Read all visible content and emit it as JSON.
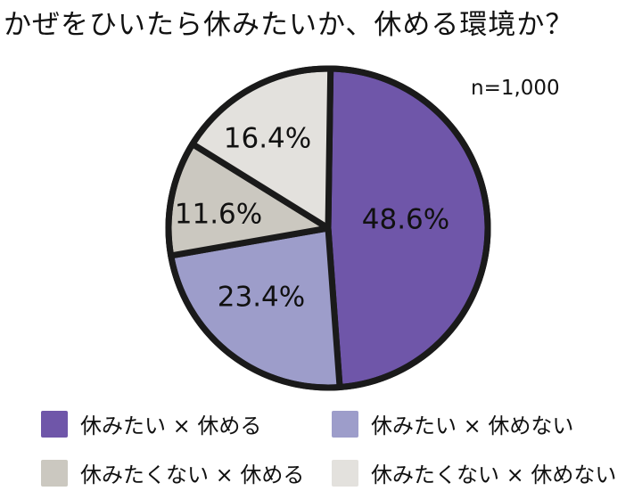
{
  "chart_data": {
    "type": "pie",
    "title": "かぜをひいたら休みたいか、休める環境か？",
    "note": "n=1,000",
    "slices": [
      {
        "name": "休みたい × 休める",
        "value": 48.6,
        "label": "48.6%",
        "color": "#6f56a9"
      },
      {
        "name": "休みたい × 休めない",
        "value": 23.4,
        "label": "23.4%",
        "color": "#9d9dca"
      },
      {
        "name": "休みたくない × 休める",
        "value": 11.6,
        "label": "11.6%",
        "color": "#cbc8c0"
      },
      {
        "name": "休みたくない × 休めない",
        "value": 16.4,
        "label": "16.4%",
        "color": "#e3e1dd"
      }
    ],
    "legend_position": "bottom"
  }
}
